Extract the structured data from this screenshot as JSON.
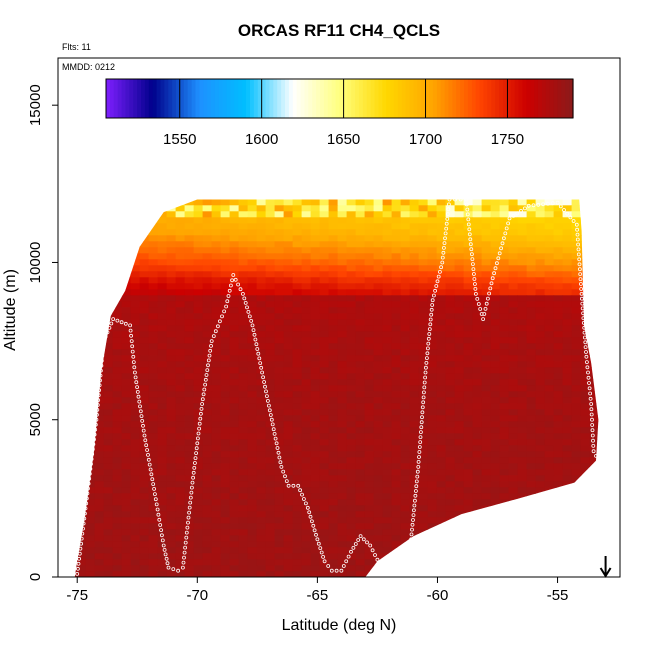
{
  "chart_data": {
    "type": "heatmap",
    "title": "ORCAS RF11 CH4_QCLS",
    "xlabel": "Latitude (deg N)",
    "ylabel": "Altitude (m)",
    "xlim": [
      -75.8,
      -52.4
    ],
    "ylim": [
      0,
      16500
    ],
    "xticks": [
      -75,
      -70,
      -65,
      -60,
      -55
    ],
    "yticks": [
      0,
      5000,
      10000,
      15000
    ],
    "flights_note": "Flts: 11",
    "date_note": "MMDD: 0212",
    "colorbar": {
      "range": [
        1505,
        1790
      ],
      "ticks": [
        1550,
        1600,
        1650,
        1700,
        1750
      ],
      "dividers": [
        1550,
        1600,
        1650,
        1700,
        1750
      ],
      "colors": [
        "#7f1fff",
        "#00008b",
        "#1e90ff",
        "#00bfff",
        "#ffffff",
        "#ffff7f",
        "#ffd700",
        "#ffa500",
        "#ff4500",
        "#cd0000",
        "#8b1a1a"
      ]
    },
    "field_envelope": {
      "description_points_lat_alt": [
        [
          -75.1,
          0
        ],
        [
          -75.0,
          500
        ],
        [
          -74.7,
          1800
        ],
        [
          -74.3,
          4000
        ],
        [
          -74.0,
          6500
        ],
        [
          -73.6,
          8300
        ],
        [
          -73.0,
          9100
        ],
        [
          -72.4,
          10500
        ],
        [
          -71.4,
          11600
        ],
        [
          -70.0,
          12000
        ],
        [
          -54.1,
          12000
        ],
        [
          -54.0,
          11000
        ],
        [
          -53.9,
          8000
        ],
        [
          -53.6,
          6800
        ],
        [
          -53.3,
          5000
        ],
        [
          -53.4,
          3700
        ],
        [
          -54.3,
          3000
        ],
        [
          -56.6,
          2500
        ],
        [
          -59.0,
          2000
        ],
        [
          -61.0,
          1300
        ],
        [
          -62.5,
          500
        ],
        [
          -63.0,
          0
        ]
      ],
      "profile_rows": [
        {
          "alt": 11800,
          "value": 1700,
          "mixed_high": true
        },
        {
          "alt": 11000,
          "value": 1712
        },
        {
          "alt": 10500,
          "value": 1726
        },
        {
          "alt": 10000,
          "value": 1740
        },
        {
          "alt": 9500,
          "value": 1760
        },
        {
          "alt": 9000,
          "value": 1775
        },
        {
          "alt": 6000,
          "value": 1779
        },
        {
          "alt": 0,
          "value": 1782
        }
      ]
    },
    "flight_track": [
      [
        -75.0,
        100
      ],
      [
        -74.6,
        2500
      ],
      [
        -74.2,
        5000
      ],
      [
        -73.9,
        7500
      ],
      [
        -73.5,
        8200
      ],
      [
        -72.8,
        8000
      ],
      [
        -72.6,
        6500
      ],
      [
        -72.2,
        4500
      ],
      [
        -71.8,
        2800
      ],
      [
        -71.4,
        1000
      ],
      [
        -71.2,
        300
      ],
      [
        -70.8,
        200
      ],
      [
        -70.6,
        300
      ],
      [
        -70.2,
        3000
      ],
      [
        -69.8,
        5500
      ],
      [
        -69.4,
        7500
      ],
      [
        -68.8,
        8600
      ],
      [
        -68.5,
        9600
      ],
      [
        -68.1,
        9000
      ],
      [
        -67.7,
        8000
      ],
      [
        -67.3,
        6500
      ],
      [
        -66.9,
        5000
      ],
      [
        -66.5,
        3500
      ],
      [
        -66.2,
        2900
      ],
      [
        -65.8,
        2900
      ],
      [
        -65.4,
        2200
      ],
      [
        -65.0,
        1200
      ],
      [
        -64.7,
        500
      ],
      [
        -64.4,
        200
      ],
      [
        -64.0,
        200
      ],
      [
        -63.6,
        800
      ],
      [
        -63.2,
        1300
      ],
      [
        -62.8,
        1000
      ],
      [
        -62.4,
        400
      ],
      [
        -62.0,
        200
      ],
      [
        -61.4,
        200
      ],
      [
        -61.1,
        1200
      ],
      [
        -60.8,
        3500
      ],
      [
        -60.5,
        6500
      ],
      [
        -60.2,
        8800
      ],
      [
        -59.8,
        10000
      ],
      [
        -59.5,
        12000
      ],
      [
        -58.8,
        12000
      ],
      [
        -58.4,
        9000
      ],
      [
        -58.1,
        8200
      ],
      [
        -57.7,
        9500
      ],
      [
        -57.0,
        11400
      ],
      [
        -56.2,
        11800
      ],
      [
        -55.0,
        11900
      ],
      [
        -54.2,
        11200
      ],
      [
        -54.0,
        9000
      ],
      [
        -53.8,
        7000
      ],
      [
        -53.6,
        5500
      ],
      [
        -53.5,
        4000
      ],
      [
        -53.3,
        3700
      ]
    ],
    "marker": {
      "lat": -53.0,
      "alt": 700,
      "symbol": "down-arrow"
    }
  }
}
